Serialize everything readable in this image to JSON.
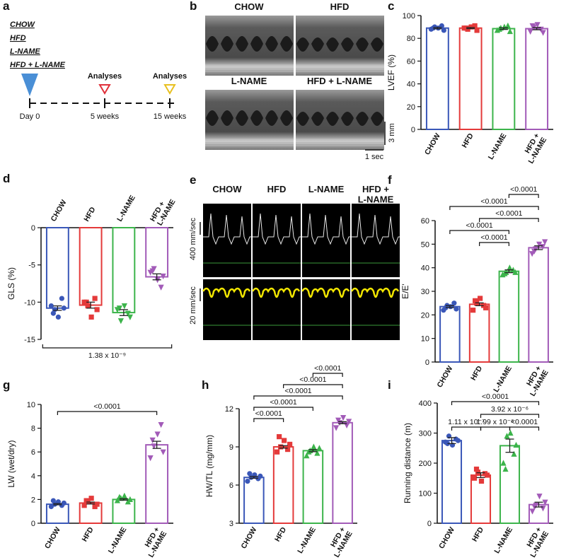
{
  "panel_labels": [
    "a",
    "b",
    "c",
    "d",
    "e",
    "f",
    "g",
    "h",
    "i"
  ],
  "timeline": {
    "groups": [
      "CHOW",
      "HFD",
      "L-NAME",
      "HFD + L-NAME"
    ],
    "milestones": [
      {
        "label": "Day 0"
      },
      {
        "label": "5 weeks",
        "marker": "Analyses"
      },
      {
        "label": "15 weeks",
        "marker": "Analyses"
      }
    ]
  },
  "mmode": {
    "groups": [
      "CHOW",
      "HFD",
      "L-NAME",
      "HFD + L-NAME"
    ],
    "scale_y": "3 mm",
    "scale_x": "1 sec"
  },
  "doppler": {
    "groups": [
      "CHOW",
      "HFD",
      "L-NAME",
      "HFD +\nL-NAME"
    ],
    "rows": [
      "400 mm/sec",
      "20 mm/sec"
    ]
  },
  "chart_data": [
    {
      "type": "bar",
      "ylabel": "LVEF (%)",
      "categories": [
        "CHOW",
        "HFD",
        "L-NAME",
        "HFD +\nL-NAME"
      ],
      "colors": [
        "#3a57b8",
        "#e43a3a",
        "#3cb44b",
        "#a25bb8"
      ],
      "markers": [
        "circle",
        "square",
        "triangle",
        "triangle-down"
      ],
      "values": [
        89,
        89,
        88.5,
        88.5
      ],
      "errors": [
        0.6,
        0.5,
        0.7,
        1.0
      ],
      "points": [
        [
          88,
          90,
          89,
          91,
          87,
          89
        ],
        [
          89,
          88,
          90,
          91,
          87,
          89
        ],
        [
          87,
          89,
          90,
          91,
          86,
          88
        ],
        [
          86,
          90,
          92,
          88,
          85,
          91
        ]
      ],
      "ylim": [
        0,
        100
      ],
      "yticks": [
        0,
        20,
        40,
        60,
        80,
        100
      ],
      "comparisons": []
    },
    {
      "type": "bar",
      "ylabel": "GLS (%)",
      "categories": [
        "CHOW",
        "HFD",
        "L-NAME",
        "HFD +\nL-NAME"
      ],
      "colors": [
        "#3a57b8",
        "#e43a3a",
        "#3cb44b",
        "#a25bb8"
      ],
      "markers": [
        "circle",
        "square",
        "triangle-down",
        "triangle-down"
      ],
      "values": [
        -10.8,
        -10.4,
        -11.4,
        -6.6
      ],
      "errors": [
        0.3,
        0.4,
        0.4,
        0.4
      ],
      "points": [
        [
          -10.5,
          -11,
          -12,
          -9.5,
          -10.8,
          -11.5
        ],
        [
          -10,
          -10.5,
          -12,
          -9.5,
          -11,
          -10
        ],
        [
          -11,
          -12.5,
          -10.5,
          -11.5,
          -12,
          -10.8
        ],
        [
          -6,
          -5.5,
          -7,
          -8,
          -6.5,
          -5.8
        ]
      ],
      "ylim": [
        -15,
        0
      ],
      "yticks": [
        0,
        -5,
        -10,
        -15
      ],
      "comparisons": [
        {
          "between": [
            0,
            3
          ],
          "label": "1.38 x 10⁻⁹"
        }
      ]
    },
    {
      "type": "bar",
      "ylabel": "E/E'",
      "categories": [
        "CHOW",
        "HFD",
        "L-NAME",
        "HFD +\nL-NAME"
      ],
      "colors": [
        "#3a57b8",
        "#e43a3a",
        "#3cb44b",
        "#a25bb8"
      ],
      "markers": [
        "circle",
        "square",
        "triangle",
        "triangle-down"
      ],
      "values": [
        23.5,
        24.5,
        38.5,
        48.5
      ],
      "errors": [
        0.4,
        0.6,
        0.6,
        0.8
      ],
      "points": [
        [
          22,
          24,
          23.5,
          25,
          22.5,
          23
        ],
        [
          22,
          25,
          27,
          24,
          23,
          26
        ],
        [
          37,
          38,
          40,
          39,
          38,
          37.5
        ],
        [
          46,
          48,
          50,
          49,
          51,
          47
        ]
      ],
      "ylim": [
        0,
        60
      ],
      "yticks": [
        0,
        10,
        20,
        30,
        40,
        50,
        60
      ],
      "comparisons": [
        {
          "between": [
            1,
            2
          ],
          "label": "<0.0001"
        },
        {
          "between": [
            0,
            2
          ],
          "label": "<0.0001"
        },
        {
          "between": [
            1,
            3
          ],
          "label": "<0.0001"
        },
        {
          "between": [
            0,
            3
          ],
          "label": "<0.0001"
        },
        {
          "between": [
            2,
            3
          ],
          "label": "<0.0001"
        }
      ]
    },
    {
      "type": "bar",
      "ylabel": "LW (wet/dry)",
      "categories": [
        "CHOW",
        "HFD",
        "L-NAME",
        "HFD +\nL-NAME"
      ],
      "colors": [
        "#3a57b8",
        "#e43a3a",
        "#3cb44b",
        "#a25bb8"
      ],
      "markers": [
        "circle",
        "square",
        "triangle",
        "triangle-down"
      ],
      "values": [
        1.6,
        1.7,
        2.0,
        6.6
      ],
      "errors": [
        0.05,
        0.08,
        0.06,
        0.3
      ],
      "points": [
        [
          1.4,
          1.6,
          1.8,
          1.5,
          1.7,
          1.9
        ],
        [
          1.5,
          1.8,
          2.1,
          1.4,
          1.6,
          1.9
        ],
        [
          1.9,
          2.1,
          2.3,
          1.8,
          2.0,
          2.2
        ],
        [
          5.5,
          6.5,
          7.5,
          8.3,
          6.0,
          7.0
        ]
      ],
      "ylim": [
        0,
        10
      ],
      "yticks": [
        0,
        2,
        4,
        6,
        8,
        10
      ],
      "comparisons": [
        {
          "between": [
            0,
            3
          ],
          "label": "<0.0001"
        }
      ]
    },
    {
      "type": "bar",
      "ylabel": "HW/TL (mg/mm)",
      "categories": [
        "CHOW",
        "HFD",
        "L-NAME",
        "HFD +\nL-NAME"
      ],
      "colors": [
        "#3a57b8",
        "#e43a3a",
        "#3cb44b",
        "#a25bb8"
      ],
      "markers": [
        "circle",
        "square",
        "triangle",
        "triangle-down"
      ],
      "values": [
        6.6,
        9.0,
        8.7,
        10.9
      ],
      "errors": [
        0.07,
        0.1,
        0.08,
        0.08
      ],
      "points": [
        [
          6.3,
          6.6,
          6.8,
          6.5,
          6.7,
          6.9
        ],
        [
          8.6,
          9.0,
          9.5,
          8.8,
          9.2,
          9.8
        ],
        [
          8.3,
          8.7,
          9.0,
          8.5,
          8.9,
          8.6
        ],
        [
          10.5,
          10.9,
          11.3,
          10.7,
          11.0,
          11.1
        ]
      ],
      "ylim": [
        3,
        12
      ],
      "yticks": [
        3,
        6,
        9,
        12
      ],
      "comparisons": [
        {
          "between": [
            0,
            1
          ],
          "label": "<0.0001"
        },
        {
          "between": [
            0,
            2
          ],
          "label": "<0.0001"
        },
        {
          "between": [
            0,
            3
          ],
          "label": "<0.0001"
        },
        {
          "between": [
            1,
            3
          ],
          "label": "<0.0001"
        },
        {
          "between": [
            2,
            3
          ],
          "label": "<0.0001"
        }
      ]
    },
    {
      "type": "bar",
      "ylabel": "Running distance (m)",
      "categories": [
        "CHOW",
        "HFD",
        "L-NAME",
        "HFD +\nL-NAME"
      ],
      "colors": [
        "#3a57b8",
        "#e43a3a",
        "#3cb44b",
        "#a25bb8"
      ],
      "markers": [
        "circle",
        "square",
        "triangle",
        "triangle-down"
      ],
      "values": [
        275,
        160,
        258,
        62
      ],
      "errors": [
        10,
        8,
        22,
        8
      ],
      "points": [
        [
          270,
          290,
          260,
          280,
          275,
          265
        ],
        [
          150,
          170,
          140,
          165,
          160,
          180
        ],
        [
          200,
          290,
          300,
          230,
          260,
          180
        ],
        [
          40,
          60,
          90,
          50,
          70,
          55
        ]
      ],
      "ylim": [
        0,
        400
      ],
      "yticks": [
        0,
        100,
        200,
        300,
        400
      ],
      "comparisons": [
        {
          "between": [
            1,
            2
          ],
          "label": "1.99 x 10⁻⁶"
        },
        {
          "between": [
            2,
            3
          ],
          "label": "<0.0001"
        },
        {
          "between": [
            0,
            1
          ],
          "label": "1.11 x 10⁻⁷"
        },
        {
          "between": [
            1,
            3
          ],
          "label": "3.92 x 10⁻⁶"
        },
        {
          "between": [
            0,
            3
          ],
          "label": "<0.0001"
        }
      ]
    }
  ]
}
